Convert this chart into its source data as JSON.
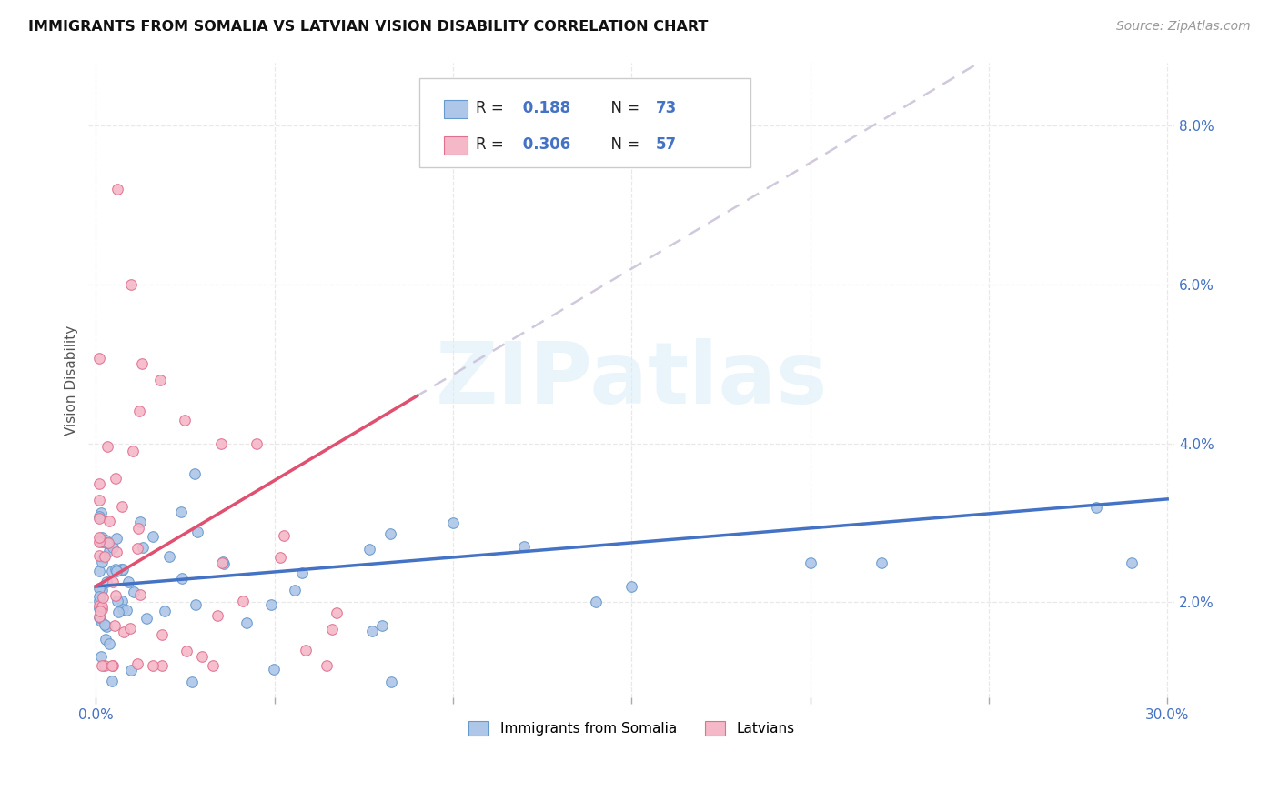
{
  "title": "IMMIGRANTS FROM SOMALIA VS LATVIAN VISION DISABILITY CORRELATION CHART",
  "source": "Source: ZipAtlas.com",
  "ylabel": "Vision Disability",
  "xlim": [
    -0.002,
    0.302
  ],
  "ylim": [
    0.008,
    0.088
  ],
  "yticks": [
    0.02,
    0.04,
    0.06,
    0.08
  ],
  "xticks": [
    0.0,
    0.05,
    0.1,
    0.15,
    0.2,
    0.25,
    0.3
  ],
  "xtick_labels": [
    "0.0%",
    "",
    "",
    "",
    "",
    "",
    "30.0%"
  ],
  "legend_label1": "Immigrants from Somalia",
  "legend_label2": "Latvians",
  "color_somalia_fill": "#aec6e8",
  "color_somalia_edge": "#6699cc",
  "color_latvians_fill": "#f4b8c8",
  "color_latvians_edge": "#e07090",
  "color_line_somalia": "#4472c4",
  "color_line_latvians": "#e05070",
  "color_line_extrap": "#c8c0d8",
  "color_tick_labels": "#4472c4",
  "color_grid": "#e8e8e8",
  "watermark_text": "ZIPatlas",
  "watermark_color": "#d8eef8",
  "legend_R1": "R =  0.188",
  "legend_N1": "N = 73",
  "legend_R2": "R = 0.306",
  "legend_N2": "N = 57"
}
